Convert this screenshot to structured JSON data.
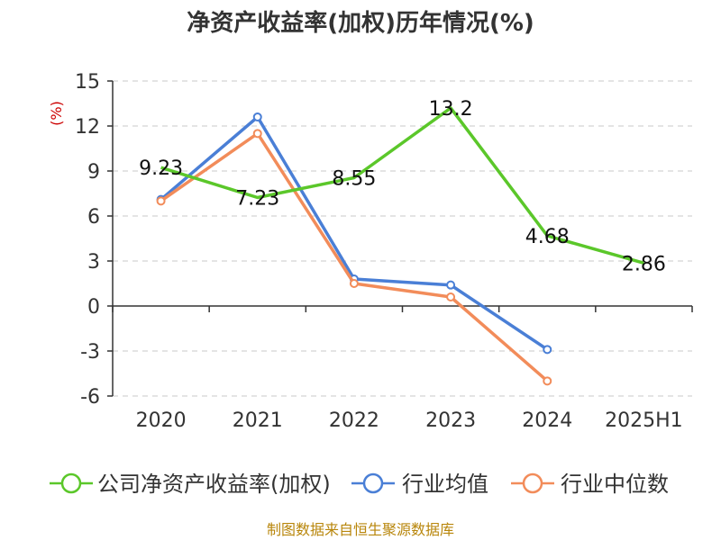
{
  "chart_data": {
    "type": "line",
    "title": "净资产收益率(加权)历年情况(%)",
    "ylabel": "(%)",
    "categories": [
      "2020",
      "2021",
      "2022",
      "2023",
      "2024",
      "2025H1"
    ],
    "yticks": [
      "15",
      "12",
      "9",
      "6",
      "3",
      "0",
      "-3",
      "-6"
    ],
    "ylim": [
      -6,
      15
    ],
    "grid": true,
    "legend_position": "bottom",
    "series": [
      {
        "name": "公司净资产收益率(加权)",
        "color": "#5bc72a",
        "values": [
          9.23,
          7.23,
          8.55,
          13.2,
          4.68,
          2.86
        ],
        "labels": [
          "9.23",
          "7.23",
          "8.55",
          "13.2",
          "4.68",
          "2.86"
        ]
      },
      {
        "name": "行业均值",
        "color": "#4a7fd6",
        "values": [
          7.1,
          12.6,
          1.8,
          1.4,
          -2.9,
          null
        ]
      },
      {
        "name": "行业中位数",
        "color": "#f28c5a",
        "values": [
          7.0,
          11.5,
          1.5,
          0.6,
          -5.0,
          null
        ]
      }
    ]
  },
  "source": "制图数据来自恒生聚源数据库"
}
